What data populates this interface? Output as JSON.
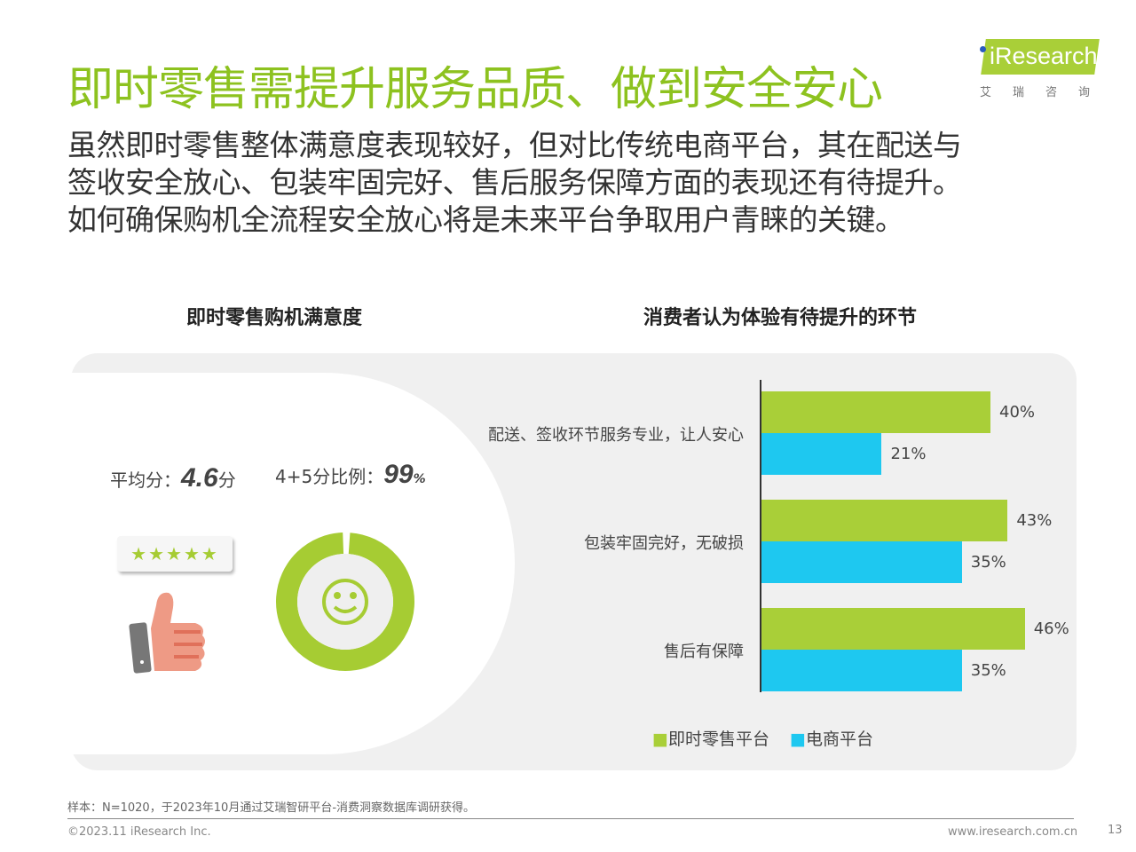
{
  "header": {
    "title": "即时零售需提升服务品质、做到安全安心",
    "body_lines": [
      "虽然即时零售整体满意度表现较好，但对比传统电商平台，其在配送与",
      "签收安全放心、包装牢固完好、售后服务保障方面的表现还有待提升。",
      "如何确保购机全流程安全放心将是未来平台争取用户青睐的关键。"
    ],
    "logo": {
      "text": "iResearch",
      "cn": "艾瑞咨询"
    }
  },
  "left": {
    "subtitle": "即时零售购机满意度",
    "avg_label": "平均分：",
    "avg_value": "4.6",
    "avg_unit": "分",
    "ratio_label": "4+5分比例：",
    "ratio_value": "99",
    "ratio_unit": "%",
    "stars": "★★★★★",
    "star_rating": 4.6,
    "donut_percent": 99,
    "colors": {
      "green": "#a6cc33"
    }
  },
  "chart_data": {
    "type": "bar",
    "orientation": "horizontal",
    "title": "消费者认为体验有待提升的环节",
    "categories": [
      "配送、签收环节服务专业，让人安心",
      "包装牢固完好，无破损",
      "售后有保障"
    ],
    "series": [
      {
        "name": "即时零售平台",
        "values": [
          40,
          43,
          46
        ],
        "labels": [
          "40%",
          "43%",
          "46%"
        ],
        "color": "#a9cf38"
      },
      {
        "name": "电商平台",
        "values": [
          21,
          35,
          35
        ],
        "labels": [
          "21%",
          "35%",
          "35%"
        ],
        "color": "#1ec8f0"
      }
    ],
    "unit": "%",
    "legend": "bottom",
    "grid": false
  },
  "footer": {
    "note": "样本：N=1020，于2023年10月通过艾瑞智研平台-消费洞察数据库调研获得。",
    "copyright": "©2023.11 iResearch Inc.",
    "url": "www.iresearch.com.cn",
    "page": "13"
  }
}
